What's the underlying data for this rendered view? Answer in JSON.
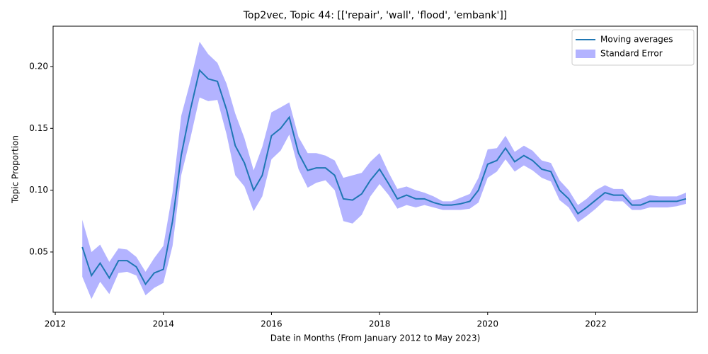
{
  "chart_data": {
    "type": "line",
    "title": "Top2vec, Topic 44: [['repair', 'wall', 'flood', 'embank']]",
    "xlabel": "Date in Months (From January 2012 to May 2023)",
    "ylabel": "Topic Proportion",
    "x": [
      2012.5,
      2012.67,
      2012.83,
      2013,
      2013.17,
      2013.33,
      2013.5,
      2013.67,
      2013.83,
      2014,
      2014.17,
      2014.33,
      2014.5,
      2014.67,
      2014.83,
      2015,
      2015.17,
      2015.33,
      2015.5,
      2015.67,
      2015.83,
      2016,
      2016.17,
      2016.33,
      2016.5,
      2016.67,
      2016.83,
      2017,
      2017.17,
      2017.33,
      2017.5,
      2017.67,
      2017.83,
      2018,
      2018.17,
      2018.33,
      2018.5,
      2018.67,
      2018.83,
      2019,
      2019.17,
      2019.33,
      2019.5,
      2019.67,
      2019.83,
      2020,
      2020.17,
      2020.33,
      2020.5,
      2020.67,
      2020.83,
      2021,
      2021.17,
      2021.33,
      2021.5,
      2021.67,
      2021.83,
      2022,
      2022.17,
      2022.33,
      2022.5,
      2022.67,
      2022.83,
      2023,
      2023.17,
      2023.33,
      2023.5,
      2023.67
    ],
    "series": [
      {
        "name": "Moving averages",
        "color": "#1f77b4",
        "values": [
          0.054,
          0.031,
          0.041,
          0.029,
          0.043,
          0.043,
          0.038,
          0.024,
          0.033,
          0.036,
          0.075,
          0.128,
          0.165,
          0.197,
          0.19,
          0.188,
          0.165,
          0.136,
          0.122,
          0.1,
          0.112,
          0.144,
          0.15,
          0.159,
          0.13,
          0.116,
          0.118,
          0.118,
          0.112,
          0.093,
          0.092,
          0.097,
          0.108,
          0.117,
          0.105,
          0.093,
          0.096,
          0.093,
          0.093,
          0.09,
          0.088,
          0.088,
          0.089,
          0.091,
          0.1,
          0.121,
          0.124,
          0.134,
          0.123,
          0.128,
          0.124,
          0.117,
          0.115,
          0.1,
          0.093,
          0.081,
          0.086,
          0.092,
          0.098,
          0.096,
          0.096,
          0.088,
          0.088,
          0.091,
          0.091,
          0.091,
          0.091,
          0.093
        ]
      }
    ],
    "band": {
      "name": "Standard Error",
      "color": "#b3b3ff",
      "lower": [
        0.03,
        0.012,
        0.026,
        0.016,
        0.033,
        0.034,
        0.031,
        0.015,
        0.021,
        0.025,
        0.055,
        0.112,
        0.142,
        0.175,
        0.172,
        0.173,
        0.145,
        0.112,
        0.103,
        0.083,
        0.095,
        0.125,
        0.132,
        0.145,
        0.117,
        0.102,
        0.106,
        0.108,
        0.1,
        0.075,
        0.073,
        0.08,
        0.095,
        0.105,
        0.096,
        0.085,
        0.088,
        0.086,
        0.088,
        0.086,
        0.084,
        0.084,
        0.084,
        0.085,
        0.09,
        0.11,
        0.115,
        0.125,
        0.115,
        0.12,
        0.116,
        0.11,
        0.107,
        0.092,
        0.086,
        0.074,
        0.079,
        0.085,
        0.092,
        0.091,
        0.091,
        0.084,
        0.084,
        0.086,
        0.086,
        0.086,
        0.087,
        0.089
      ],
      "upper": [
        0.076,
        0.05,
        0.056,
        0.042,
        0.053,
        0.052,
        0.046,
        0.034,
        0.045,
        0.055,
        0.098,
        0.16,
        0.188,
        0.22,
        0.21,
        0.203,
        0.186,
        0.162,
        0.142,
        0.116,
        0.135,
        0.163,
        0.167,
        0.171,
        0.143,
        0.13,
        0.13,
        0.128,
        0.124,
        0.11,
        0.112,
        0.114,
        0.123,
        0.13,
        0.114,
        0.101,
        0.103,
        0.1,
        0.098,
        0.095,
        0.091,
        0.091,
        0.094,
        0.097,
        0.11,
        0.133,
        0.134,
        0.144,
        0.131,
        0.136,
        0.132,
        0.124,
        0.122,
        0.108,
        0.1,
        0.088,
        0.093,
        0.1,
        0.104,
        0.101,
        0.101,
        0.092,
        0.093,
        0.096,
        0.095,
        0.095,
        0.095,
        0.098
      ]
    },
    "xlim": [
      2011.96,
      2023.88
    ],
    "ylim": [
      0.0013,
      0.2326
    ],
    "xticks": [
      2012,
      2014,
      2016,
      2018,
      2020,
      2022
    ],
    "yticks": [
      0.05,
      {
        "value": 0.1,
        "label": "0.10"
      },
      0.15,
      {
        "value": 0.2,
        "label": "0.20"
      }
    ],
    "legend": "upper right"
  }
}
